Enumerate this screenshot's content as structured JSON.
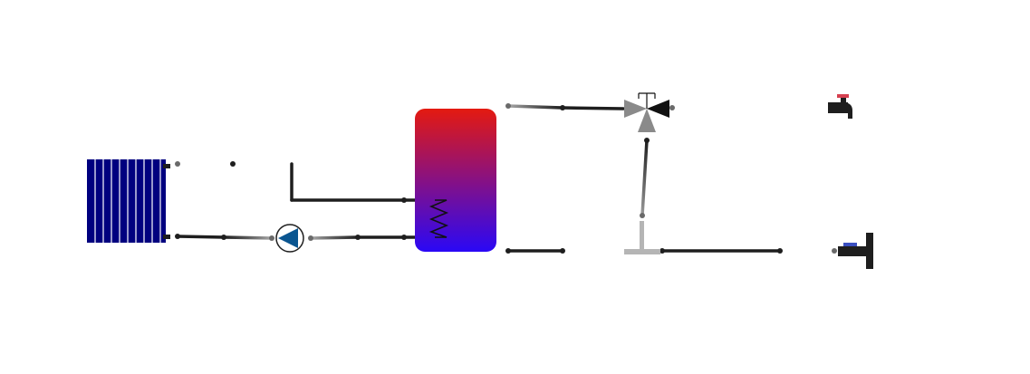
{
  "diagram": {
    "type": "hydraulic-schematic",
    "components": [
      {
        "id": "radiator",
        "kind": "radiator-icon"
      },
      {
        "id": "circulation-pump",
        "kind": "pump-icon"
      },
      {
        "id": "storage-tank",
        "kind": "tank-icon"
      },
      {
        "id": "heat-exchanger-coil",
        "kind": "coil-icon"
      },
      {
        "id": "mixing-valve",
        "kind": "three-way-valve-icon"
      },
      {
        "id": "hot-water-tap",
        "kind": "tap-icon"
      },
      {
        "id": "cold-water-inlet",
        "kind": "inlet-icon"
      },
      {
        "id": "tee-junction",
        "kind": "tee-icon"
      }
    ],
    "colors": {
      "radiator": "#00007f",
      "tank_top": "#e41a10",
      "tank_bottom": "#2a08f6",
      "pump_fill": "#0a5590",
      "pipe_dark": "#1e1e1e",
      "pipe_light": "#9a9a9a",
      "hot_handle": "#d64050",
      "cold_handle": "#3a4fc0"
    }
  }
}
